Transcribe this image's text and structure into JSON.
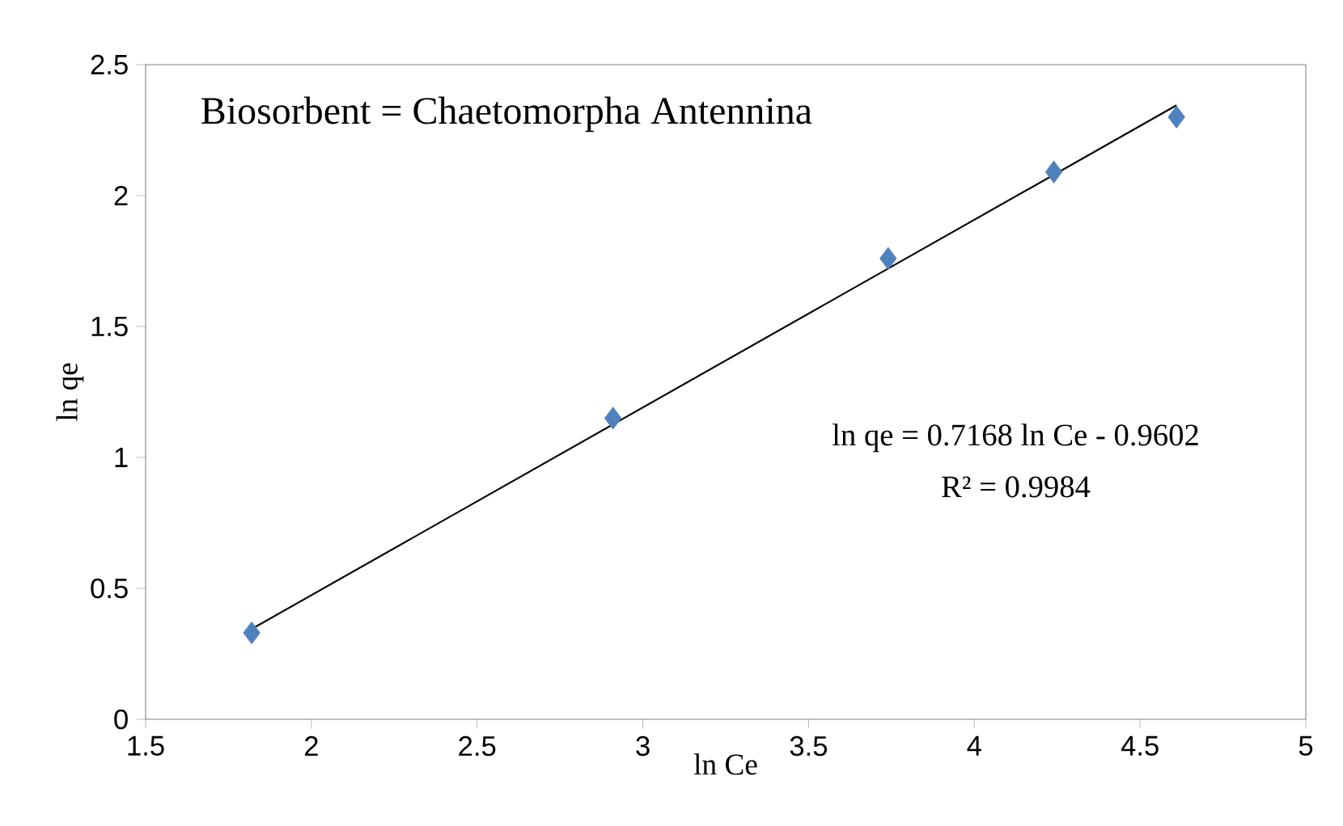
{
  "chart_data": {
    "type": "scatter",
    "xlabel": "ln Ce",
    "ylabel": "ln qe",
    "annotations": [
      "Biosorbent = Chaetomorpha Antennina",
      "ln qe = 0.7168 ln Ce - 0.9602",
      "R² = 0.9984"
    ],
    "series": [
      {
        "color": "#4f81bd",
        "marker": "diamond",
        "x": [
          1.82,
          2.91,
          3.74,
          4.24,
          4.61
        ],
        "values": [
          0.33,
          1.15,
          1.76,
          2.09,
          2.3
        ]
      },
      {
        "type": "line",
        "color": "#000000",
        "marker": "none",
        "line_style": "solid",
        "x": [
          1.82,
          4.61
        ],
        "values": [
          0.345,
          2.345
        ]
      }
    ],
    "xlim": [
      1.5,
      5
    ],
    "ylim": [
      0,
      2.5
    ],
    "xticks": [
      1.5,
      2,
      2.5,
      3,
      3.5,
      4,
      4.5,
      5
    ],
    "yticks": [
      0,
      0.5,
      1,
      1.5,
      2,
      2.5
    ],
    "grid": false
  }
}
